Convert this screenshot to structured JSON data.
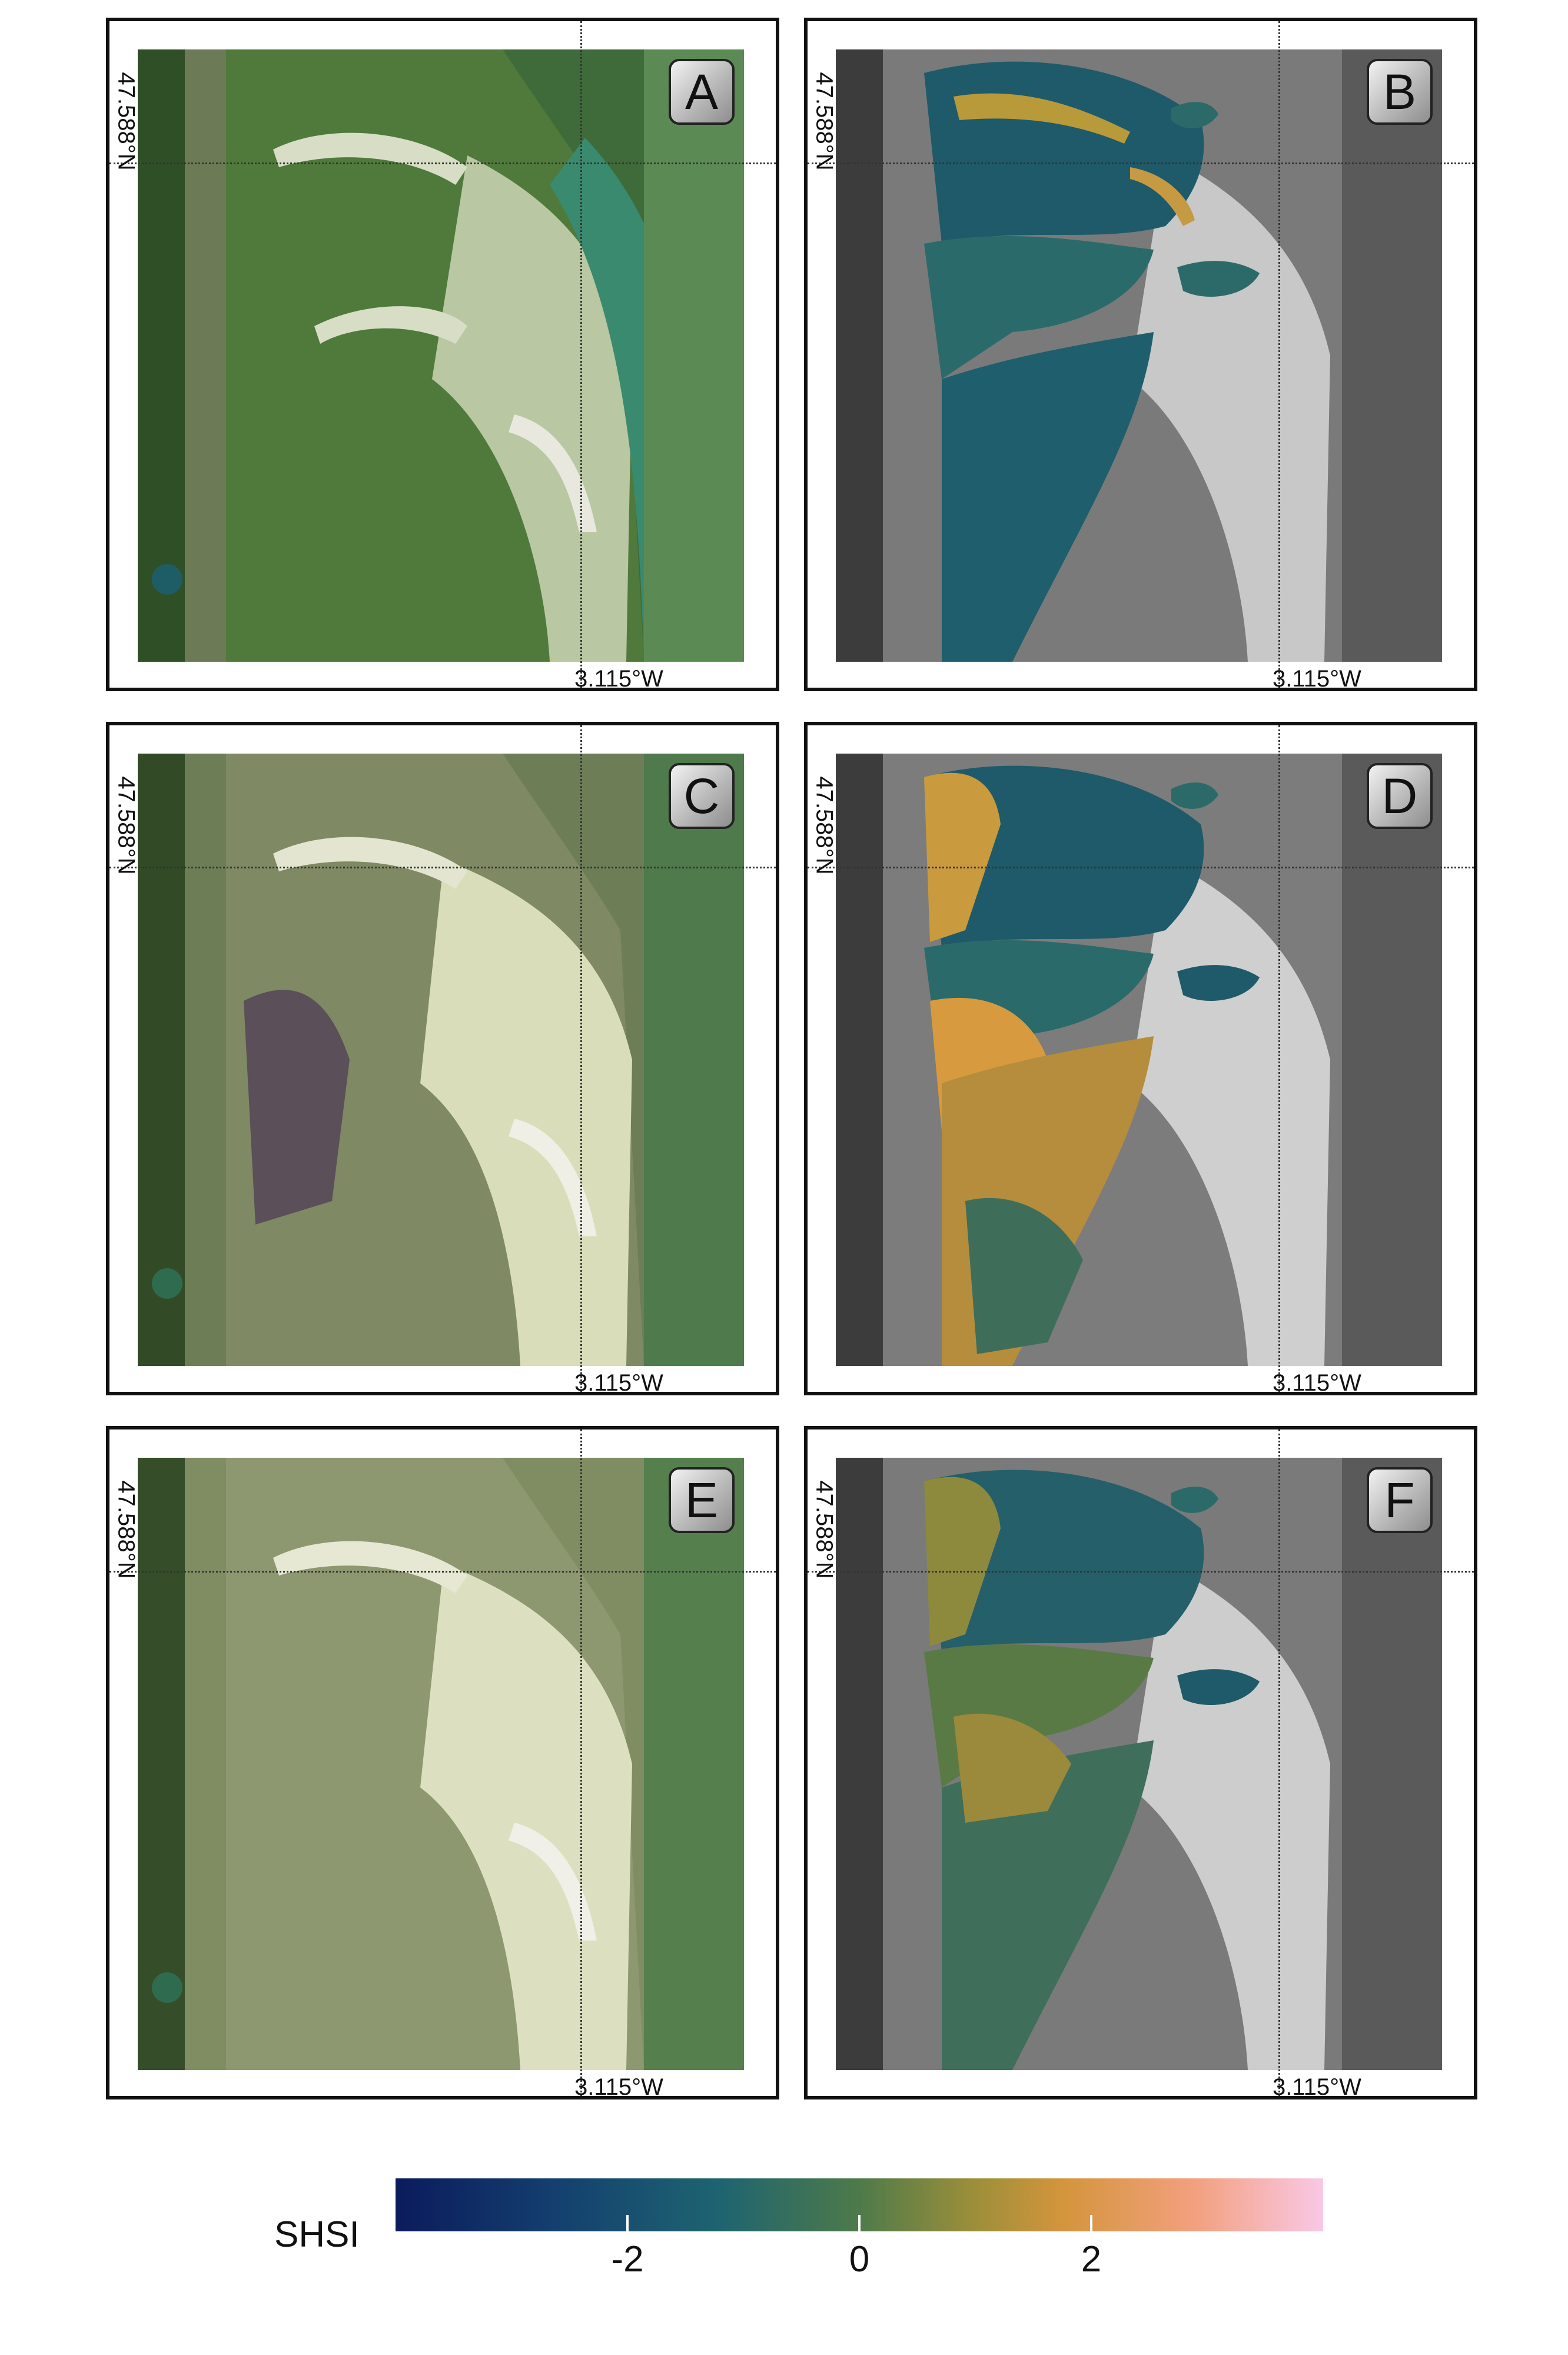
{
  "panels": [
    {
      "label": "A",
      "kind": "rgb",
      "lat_label": "47.588°N",
      "lon_label": "3.115°W"
    },
    {
      "label": "B",
      "kind": "shsi",
      "lat_label": "47.588°N",
      "lon_label": "3.115°W"
    },
    {
      "label": "C",
      "kind": "rgb",
      "lat_label": "47.588°N",
      "lon_label": "3.115°W"
    },
    {
      "label": "D",
      "kind": "shsi",
      "lat_label": "47.588°N",
      "lon_label": "3.115°W"
    },
    {
      "label": "E",
      "kind": "rgb",
      "lat_label": "47.588°N",
      "lon_label": "3.115°W"
    },
    {
      "label": "F",
      "kind": "shsi",
      "lat_label": "47.588°N",
      "lon_label": "3.115°W"
    }
  ],
  "colorbar": {
    "title": "SHSI",
    "ticks": [
      "-2",
      "0",
      "2"
    ],
    "tick_values": [
      -2,
      0,
      2
    ],
    "range": [
      -4,
      4
    ],
    "colors": [
      "#0b1b5c",
      "#1e6470",
      "#4e7a4a",
      "#d4953c",
      "#f9c8e6"
    ]
  }
}
